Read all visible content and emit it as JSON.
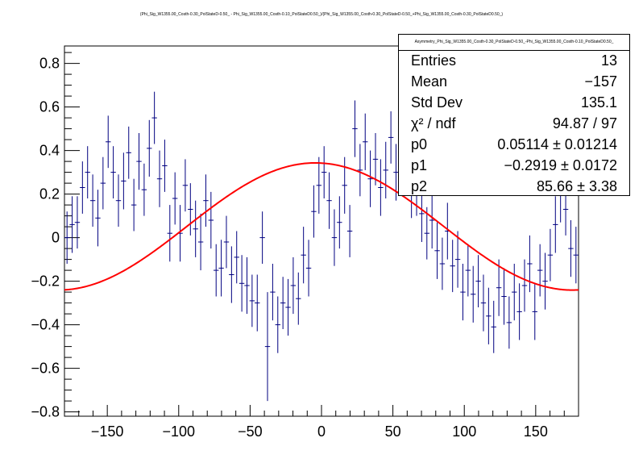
{
  "title": "(Phi_Sig_W1355.00_Costh-0.30_PolStateD-0.50_ - Phi_Sig_W1355.00_Costh-0.10_PolStateD0.50_)/(Phi_Sig_W1355.00_Costh-0.30_PolStateD-0.50_+Phi_Sig_W1355.00_Costh-0.30_PolStateD0.50_)",
  "stats": {
    "title": "Asymmetry_Phi_Sig_W1355.00_Costh-0.30_PolStateD-0.50_-Phi_Sig_W1355.00_Costh-0.10_PolStateD0.50_",
    "rows": [
      {
        "name": "Entries",
        "value": "13"
      },
      {
        "name": "Mean",
        "value": "−157"
      },
      {
        "name": "Std Dev",
        "value": "135.1"
      },
      {
        "name": "χ² / ndf",
        "value": "94.87 / 97"
      },
      {
        "name": "p0",
        "value": "0.05114 ± 0.01214"
      },
      {
        "name": "p1",
        "value": "−0.2919 ± 0.0172"
      },
      {
        "name": "p2",
        "value": "85.66 ± 3.38"
      }
    ]
  },
  "colors": {
    "points": "#000080",
    "fit": "#ff0000",
    "axis": "#000000"
  },
  "chart_data": {
    "type": "scatter",
    "xlim": [
      -180,
      180
    ],
    "ylim": [
      -0.82,
      0.88
    ],
    "x_ticks": [
      -150,
      -100,
      -50,
      0,
      50,
      100,
      150
    ],
    "x_tick_labels": [
      "−150",
      "−100",
      "−50",
      "0",
      "50",
      "100",
      "150"
    ],
    "y_ticks": [
      -0.8,
      -0.6,
      -0.4,
      -0.2,
      0,
      0.2,
      0.4,
      0.6,
      0.8
    ],
    "y_tick_labels": [
      "−0.8",
      "−0.6",
      "−0.4",
      "−0.2",
      "0",
      "0.2",
      "0.4",
      "0.6",
      "0.8"
    ],
    "bin_width": 3.6,
    "fit": {
      "function": "p0 + p1*sin((x - p2) deg)",
      "p0": 0.05114,
      "p1": -0.2919,
      "p2": 85.66
    },
    "points": [
      {
        "x": -178.2,
        "y": 0.0,
        "err": 0.12
      },
      {
        "x": -174.6,
        "y": 0.06,
        "err": 0.13
      },
      {
        "x": -171.0,
        "y": 0.07,
        "err": 0.12
      },
      {
        "x": -167.4,
        "y": 0.23,
        "err": 0.12
      },
      {
        "x": -163.8,
        "y": 0.3,
        "err": 0.12
      },
      {
        "x": -160.2,
        "y": 0.17,
        "err": 0.12
      },
      {
        "x": -156.6,
        "y": 0.09,
        "err": 0.13
      },
      {
        "x": -153.0,
        "y": 0.25,
        "err": 0.12
      },
      {
        "x": -149.4,
        "y": 0.44,
        "err": 0.12
      },
      {
        "x": -145.8,
        "y": 0.3,
        "err": 0.12
      },
      {
        "x": -142.2,
        "y": 0.17,
        "err": 0.12
      },
      {
        "x": -138.6,
        "y": 0.26,
        "err": 0.13
      },
      {
        "x": -135.0,
        "y": 0.39,
        "err": 0.12
      },
      {
        "x": -131.4,
        "y": 0.15,
        "err": 0.12
      },
      {
        "x": -127.8,
        "y": 0.35,
        "err": 0.13
      },
      {
        "x": -124.2,
        "y": 0.22,
        "err": 0.12
      },
      {
        "x": -120.6,
        "y": 0.41,
        "err": 0.13
      },
      {
        "x": -117.0,
        "y": 0.55,
        "err": 0.12
      },
      {
        "x": -113.4,
        "y": 0.27,
        "err": 0.13
      },
      {
        "x": -109.8,
        "y": 0.33,
        "err": 0.12
      },
      {
        "x": -106.2,
        "y": 0.02,
        "err": 0.13
      },
      {
        "x": -102.6,
        "y": 0.18,
        "err": 0.12
      },
      {
        "x": -99.0,
        "y": 0.02,
        "err": 0.13
      },
      {
        "x": -95.4,
        "y": 0.24,
        "err": 0.12
      },
      {
        "x": -91.8,
        "y": 0.13,
        "err": 0.12
      },
      {
        "x": -88.2,
        "y": 0.04,
        "err": 0.13
      },
      {
        "x": -84.6,
        "y": -0.02,
        "err": 0.13
      },
      {
        "x": -81.0,
        "y": 0.17,
        "err": 0.12
      },
      {
        "x": -77.4,
        "y": 0.08,
        "err": 0.13
      },
      {
        "x": -73.8,
        "y": -0.15,
        "err": 0.12
      },
      {
        "x": -70.2,
        "y": -0.14,
        "err": 0.13
      },
      {
        "x": -66.6,
        "y": -0.02,
        "err": 0.12
      },
      {
        "x": -63.0,
        "y": -0.17,
        "err": 0.13
      },
      {
        "x": -59.4,
        "y": -0.09,
        "err": 0.12
      },
      {
        "x": -55.8,
        "y": -0.21,
        "err": 0.13
      },
      {
        "x": -52.2,
        "y": -0.22,
        "err": 0.13
      },
      {
        "x": -48.6,
        "y": -0.29,
        "err": 0.12
      },
      {
        "x": -45.0,
        "y": -0.3,
        "err": 0.13
      },
      {
        "x": -41.4,
        "y": 0.0,
        "err": 0.12
      },
      {
        "x": -37.8,
        "y": -0.5,
        "err": 0.25
      },
      {
        "x": -34.2,
        "y": -0.25,
        "err": 0.13
      },
      {
        "x": -30.6,
        "y": -0.4,
        "err": 0.13
      },
      {
        "x": -27.0,
        "y": -0.3,
        "err": 0.12
      },
      {
        "x": -23.4,
        "y": -0.32,
        "err": 0.13
      },
      {
        "x": -19.8,
        "y": -0.22,
        "err": 0.13
      },
      {
        "x": -16.2,
        "y": -0.28,
        "err": 0.12
      },
      {
        "x": -12.6,
        "y": -0.08,
        "err": 0.13
      },
      {
        "x": -9.0,
        "y": -0.14,
        "err": 0.13
      },
      {
        "x": -5.4,
        "y": 0.12,
        "err": 0.12
      },
      {
        "x": -1.8,
        "y": 0.24,
        "err": 0.13
      },
      {
        "x": 1.8,
        "y": 0.3,
        "err": 0.12
      },
      {
        "x": 5.4,
        "y": 0.17,
        "err": 0.13
      },
      {
        "x": 9.0,
        "y": 0.0,
        "err": 0.13
      },
      {
        "x": 12.6,
        "y": 0.07,
        "err": 0.12
      },
      {
        "x": 16.2,
        "y": 0.24,
        "err": 0.13
      },
      {
        "x": 19.8,
        "y": 0.03,
        "err": 0.12
      },
      {
        "x": 23.4,
        "y": 0.5,
        "err": 0.13
      },
      {
        "x": 27.0,
        "y": 0.31,
        "err": 0.12
      },
      {
        "x": 30.6,
        "y": 0.44,
        "err": 0.13
      },
      {
        "x": 34.2,
        "y": 0.27,
        "err": 0.13
      },
      {
        "x": 37.8,
        "y": 0.36,
        "err": 0.12
      },
      {
        "x": 41.4,
        "y": 0.23,
        "err": 0.13
      },
      {
        "x": 45.0,
        "y": 0.31,
        "err": 0.13
      },
      {
        "x": 48.6,
        "y": 0.46,
        "err": 0.12
      },
      {
        "x": 52.2,
        "y": 0.3,
        "err": 0.13
      },
      {
        "x": 55.8,
        "y": 0.4,
        "err": 0.12
      },
      {
        "x": 59.4,
        "y": 0.33,
        "err": 0.13
      },
      {
        "x": 63.0,
        "y": 0.22,
        "err": 0.13
      },
      {
        "x": 66.6,
        "y": 0.22,
        "err": 0.12
      },
      {
        "x": 70.2,
        "y": 0.11,
        "err": 0.13
      },
      {
        "x": 73.8,
        "y": 0.02,
        "err": 0.12
      },
      {
        "x": 77.4,
        "y": 0.08,
        "err": 0.13
      },
      {
        "x": 81.0,
        "y": -0.06,
        "err": 0.13
      },
      {
        "x": 84.6,
        "y": -0.12,
        "err": 0.12
      },
      {
        "x": 88.2,
        "y": 0.03,
        "err": 0.13
      },
      {
        "x": 91.8,
        "y": -0.13,
        "err": 0.12
      },
      {
        "x": 95.4,
        "y": -0.1,
        "err": 0.13
      },
      {
        "x": 99.0,
        "y": -0.25,
        "err": 0.13
      },
      {
        "x": 102.6,
        "y": -0.15,
        "err": 0.12
      },
      {
        "x": 106.2,
        "y": -0.26,
        "err": 0.13
      },
      {
        "x": 109.8,
        "y": -0.2,
        "err": 0.12
      },
      {
        "x": 113.4,
        "y": -0.3,
        "err": 0.13
      },
      {
        "x": 117.0,
        "y": -0.36,
        "err": 0.13
      },
      {
        "x": 120.6,
        "y": -0.41,
        "err": 0.12
      },
      {
        "x": 124.2,
        "y": -0.23,
        "err": 0.13
      },
      {
        "x": 127.8,
        "y": -0.27,
        "err": 0.13
      },
      {
        "x": 131.4,
        "y": -0.39,
        "err": 0.12
      },
      {
        "x": 135.0,
        "y": -0.25,
        "err": 0.13
      },
      {
        "x": 138.6,
        "y": -0.34,
        "err": 0.13
      },
      {
        "x": 142.2,
        "y": -0.22,
        "err": 0.12
      },
      {
        "x": 145.8,
        "y": -0.12,
        "err": 0.13
      },
      {
        "x": 149.4,
        "y": -0.34,
        "err": 0.13
      },
      {
        "x": 153.0,
        "y": -0.15,
        "err": 0.12
      },
      {
        "x": 156.6,
        "y": -0.2,
        "err": 0.13
      },
      {
        "x": 160.2,
        "y": -0.08,
        "err": 0.12
      },
      {
        "x": 163.8,
        "y": 0.06,
        "err": 0.13
      },
      {
        "x": 167.4,
        "y": 0.2,
        "err": 0.13
      },
      {
        "x": 171.0,
        "y": 0.13,
        "err": 0.12
      },
      {
        "x": 174.6,
        "y": -0.05,
        "err": 0.13
      },
      {
        "x": 178.2,
        "y": -0.08,
        "err": 0.13
      }
    ]
  }
}
